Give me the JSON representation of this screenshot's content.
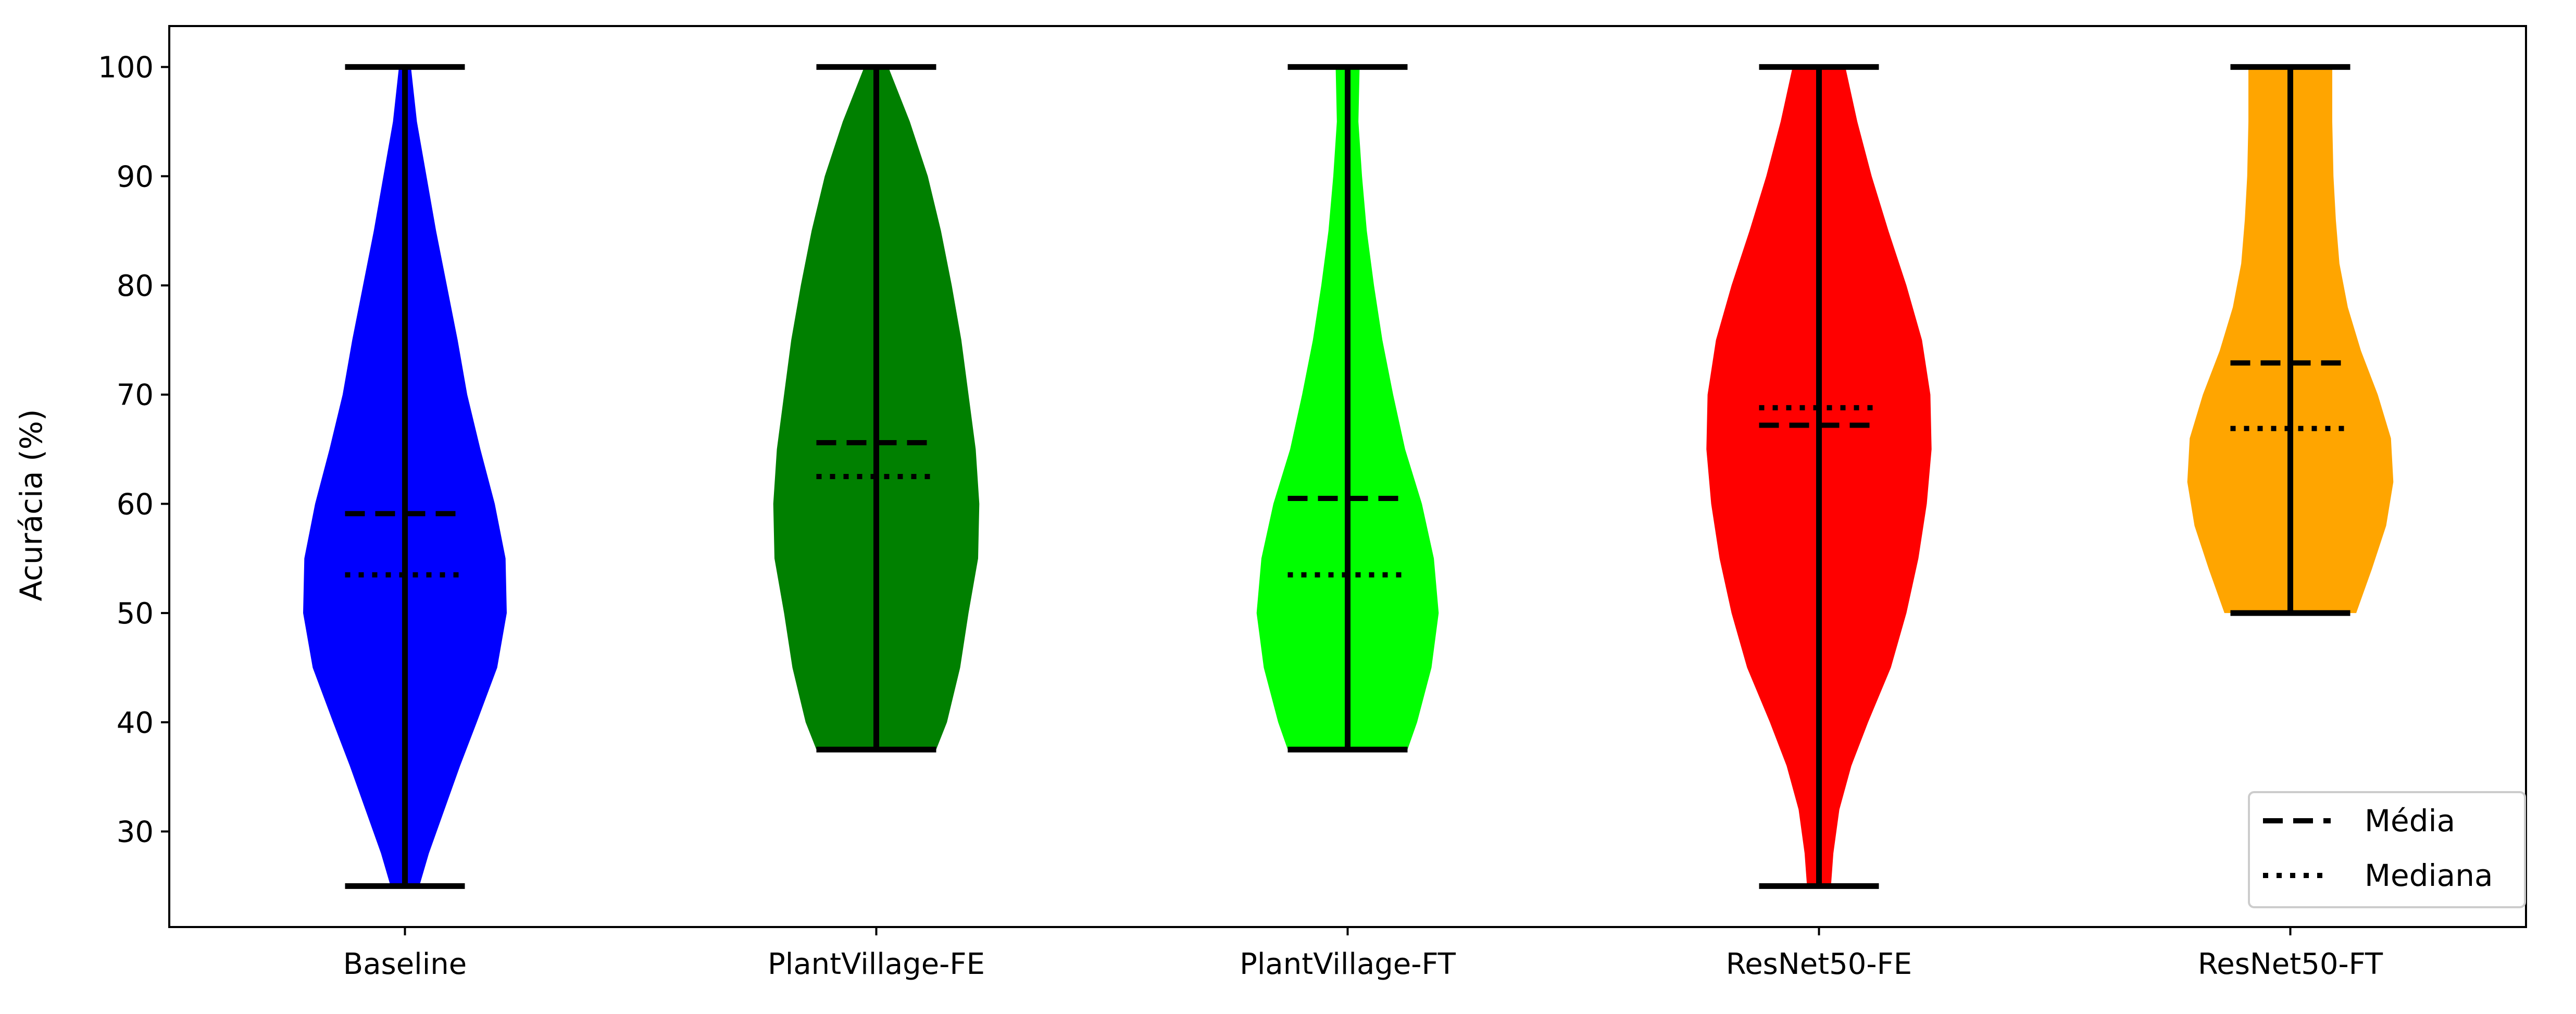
{
  "chart_data": {
    "type": "violin",
    "ylabel": "Acurácia (%)",
    "xlabel": "",
    "ylim": [
      21.25,
      103.75
    ],
    "yticks": [
      30,
      40,
      50,
      60,
      70,
      80,
      90,
      100
    ],
    "categories": [
      "Baseline",
      "PlantVillage-FE",
      "PlantVillage-FT",
      "ResNet50-FE",
      "ResNet50-FT"
    ],
    "colors": [
      "#0000ff",
      "#008000",
      "#00ff00",
      "#ff0000",
      "#ffa500"
    ],
    "legend": {
      "position": "lower-right",
      "entries": [
        {
          "label": "Média",
          "style": "dashed"
        },
        {
          "label": "Mediana",
          "style": "dotted"
        }
      ]
    },
    "series": [
      {
        "category": "Baseline",
        "min": 25,
        "max": 100,
        "mean": 59.1,
        "median": 53.5,
        "profile": [
          [
            25,
            0.12
          ],
          [
            28,
            0.2
          ],
          [
            32,
            0.33
          ],
          [
            36,
            0.46
          ],
          [
            40,
            0.6
          ],
          [
            45,
            0.77
          ],
          [
            50,
            0.85
          ],
          [
            55,
            0.84
          ],
          [
            60,
            0.75
          ],
          [
            65,
            0.63
          ],
          [
            70,
            0.52
          ],
          [
            75,
            0.44
          ],
          [
            80,
            0.35
          ],
          [
            85,
            0.26
          ],
          [
            90,
            0.18
          ],
          [
            95,
            0.1
          ],
          [
            100,
            0.05
          ]
        ]
      },
      {
        "category": "PlantVillage-FE",
        "min": 37.5,
        "max": 100,
        "mean": 65.6,
        "median": 62.5,
        "profile": [
          [
            37.5,
            0.5
          ],
          [
            40,
            0.59
          ],
          [
            45,
            0.7
          ],
          [
            50,
            0.77
          ],
          [
            55,
            0.85
          ],
          [
            60,
            0.86
          ],
          [
            65,
            0.83
          ],
          [
            70,
            0.77
          ],
          [
            75,
            0.71
          ],
          [
            80,
            0.63
          ],
          [
            85,
            0.54
          ],
          [
            90,
            0.43
          ],
          [
            95,
            0.28
          ],
          [
            100,
            0.1
          ]
        ]
      },
      {
        "category": "PlantVillage-FT",
        "min": 37.5,
        "max": 100,
        "mean": 60.5,
        "median": 53.5,
        "profile": [
          [
            37.5,
            0.5
          ],
          [
            40,
            0.58
          ],
          [
            45,
            0.7
          ],
          [
            50,
            0.76
          ],
          [
            55,
            0.72
          ],
          [
            60,
            0.62
          ],
          [
            65,
            0.48
          ],
          [
            70,
            0.38
          ],
          [
            75,
            0.29
          ],
          [
            80,
            0.22
          ],
          [
            85,
            0.16
          ],
          [
            90,
            0.12
          ],
          [
            95,
            0.09
          ],
          [
            100,
            0.1
          ]
        ]
      },
      {
        "category": "ResNet50-FE",
        "min": 25,
        "max": 100,
        "mean": 67.2,
        "median": 68.8,
        "profile": [
          [
            25,
            0.1
          ],
          [
            28,
            0.12
          ],
          [
            32,
            0.17
          ],
          [
            36,
            0.27
          ],
          [
            40,
            0.41
          ],
          [
            45,
            0.6
          ],
          [
            50,
            0.73
          ],
          [
            55,
            0.83
          ],
          [
            60,
            0.9
          ],
          [
            65,
            0.94
          ],
          [
            70,
            0.93
          ],
          [
            75,
            0.86
          ],
          [
            80,
            0.73
          ],
          [
            85,
            0.58
          ],
          [
            90,
            0.44
          ],
          [
            95,
            0.32
          ],
          [
            100,
            0.22
          ]
        ]
      },
      {
        "category": "ResNet50-FT",
        "min": 50,
        "max": 100,
        "mean": 72.9,
        "median": 66.9,
        "profile": [
          [
            50,
            0.55
          ],
          [
            54,
            0.68
          ],
          [
            58,
            0.8
          ],
          [
            62,
            0.86
          ],
          [
            66,
            0.84
          ],
          [
            70,
            0.73
          ],
          [
            74,
            0.59
          ],
          [
            78,
            0.48
          ],
          [
            82,
            0.41
          ],
          [
            86,
            0.38
          ],
          [
            90,
            0.36
          ],
          [
            95,
            0.35
          ],
          [
            100,
            0.35
          ]
        ]
      }
    ]
  }
}
